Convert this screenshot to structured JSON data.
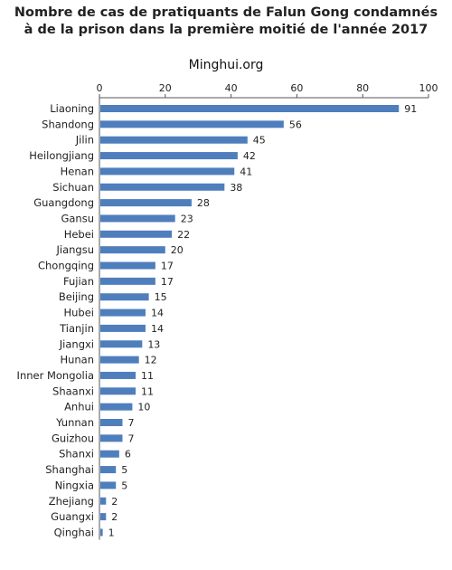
{
  "chart_data": {
    "type": "bar",
    "orientation": "horizontal",
    "title_lines": [
      "Nombre de cas de pratiquants de Falun Gong condamnés",
      "à de la prison dans la première moitié de l'année 2017"
    ],
    "subtitle": "Minghui.org",
    "categories": [
      "Liaoning",
      "Shandong",
      "Jilin",
      "Heilongjiang",
      "Henan",
      "Sichuan",
      "Guangdong",
      "Gansu",
      "Hebei",
      "Jiangsu",
      "Chongqing",
      "Fujian",
      "Beijing",
      "Hubei",
      "Tianjin",
      "Jiangxi",
      "Hunan",
      "Inner Mongolia",
      "Shaanxi",
      "Anhui",
      "Yunnan",
      "Guizhou",
      "Shanxi",
      "Shanghai",
      "Ningxia",
      "Zhejiang",
      "Guangxi",
      "Qinghai"
    ],
    "values": [
      91,
      56,
      45,
      42,
      41,
      38,
      28,
      23,
      22,
      20,
      17,
      17,
      15,
      14,
      14,
      13,
      12,
      11,
      11,
      10,
      7,
      7,
      6,
      5,
      5,
      2,
      2,
      1
    ],
    "xlim": [
      0,
      100
    ],
    "xticks": [
      0,
      20,
      40,
      60,
      80,
      100
    ],
    "xaxis_position": "top",
    "grid": false,
    "bar_color": "#4f7ebd"
  }
}
